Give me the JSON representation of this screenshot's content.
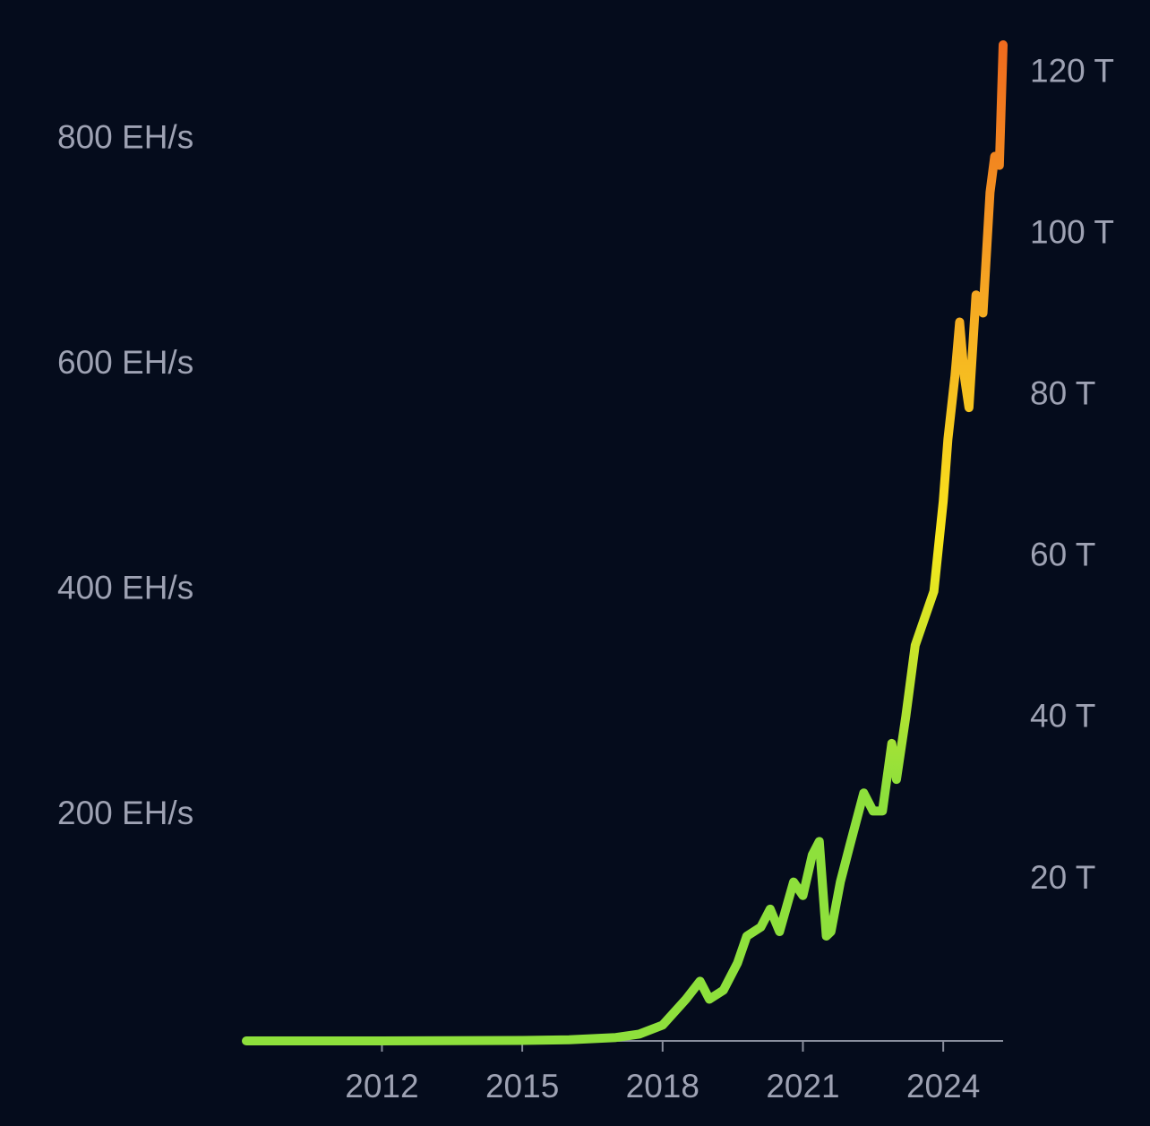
{
  "chart_data": {
    "type": "line",
    "x": [
      2009.1,
      2012,
      2015,
      2016,
      2017,
      2017.5,
      2018.0,
      2018.5,
      2018.8,
      2019.0,
      2019.3,
      2019.6,
      2019.8,
      2020.1,
      2020.3,
      2020.5,
      2020.8,
      2021.0,
      2021.2,
      2021.35,
      2021.5,
      2021.6,
      2021.8,
      2022.0,
      2022.3,
      2022.5,
      2022.7,
      2022.9,
      2023.0,
      2023.2,
      2023.4,
      2023.6,
      2023.8,
      2024.0,
      2024.1,
      2024.25,
      2024.35,
      2024.45,
      2024.55,
      2024.7,
      2024.85,
      2025.0,
      2025.1,
      2025.2,
      2025.28
    ],
    "values": [
      0,
      0,
      0.4,
      1,
      3,
      6,
      14,
      37,
      53,
      37,
      45,
      69,
      93,
      101,
      117,
      97,
      141,
      129,
      165,
      177,
      93,
      97,
      141,
      173,
      220,
      204,
      204,
      264,
      232,
      288,
      351,
      375,
      399,
      479,
      534,
      590,
      638,
      590,
      562,
      662,
      646,
      753,
      785,
      777,
      884
    ],
    "colors": [
      "#8ee03c",
      "#8ee03c",
      "#f8e71c",
      "#f5a623",
      "#f06a1e"
    ],
    "xlim": [
      2009.1,
      2025.28
    ],
    "xticks": [
      2012,
      2015,
      2018,
      2021,
      2024
    ],
    "ylim": [
      0,
      888
    ],
    "yticks": [
      {
        "value": 200,
        "label": "200 EH/s"
      },
      {
        "value": 400,
        "label": "400 EH/s"
      },
      {
        "value": 600,
        "label": "600 EH/s"
      },
      {
        "value": 800,
        "label": "800 EH/s"
      }
    ],
    "y2lim": [
      0,
      124.1
    ],
    "y2ticks": [
      {
        "value": 20,
        "label": "20 T"
      },
      {
        "value": 40,
        "label": "40 T"
      },
      {
        "value": 60,
        "label": "60 T"
      },
      {
        "value": 80,
        "label": "80 T"
      },
      {
        "value": 100,
        "label": "100 T"
      },
      {
        "value": 120,
        "label": "120 T"
      }
    ]
  }
}
